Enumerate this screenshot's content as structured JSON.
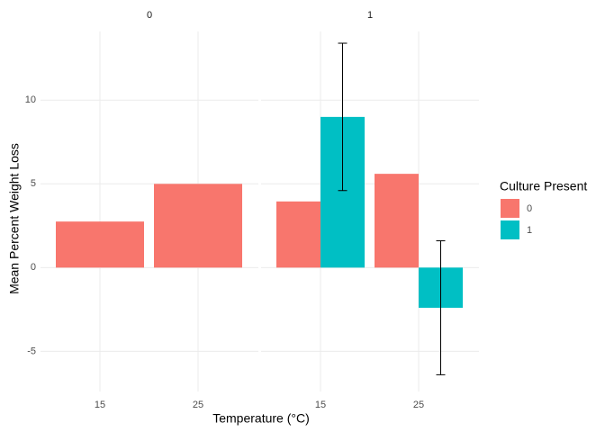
{
  "chart_data": {
    "type": "bar",
    "x_label": "Temperature (°C)",
    "y_label": "Mean Percent Weight Loss",
    "legend_title": "Culture Present",
    "ylim": [
      -7.4,
      14.1
    ],
    "yticks": [
      -5,
      0,
      5,
      10
    ],
    "grid": true,
    "facets": [
      {
        "title": "0",
        "categories": [
          "15",
          "25"
        ],
        "series": [
          {
            "name": "0",
            "color": "#F8766D",
            "values": [
              2.75,
              5.0
            ],
            "errors": [
              null,
              null
            ]
          }
        ]
      },
      {
        "title": "1",
        "categories": [
          "15",
          "25"
        ],
        "series": [
          {
            "name": "0",
            "color": "#F8766D",
            "values": [
              3.95,
              5.6
            ],
            "errors": [
              null,
              null
            ]
          },
          {
            "name": "1",
            "color": "#00BFC4",
            "values": [
              9.0,
              -2.4
            ],
            "errors": [
              4.4,
              4.0
            ]
          }
        ]
      }
    ]
  }
}
